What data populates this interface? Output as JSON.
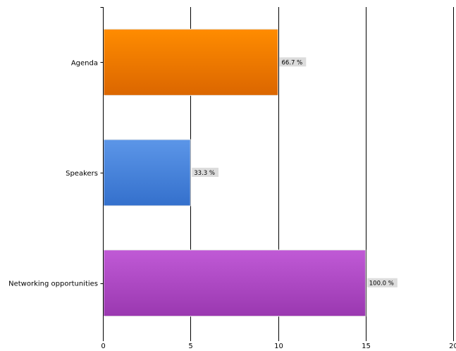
{
  "chart_data": {
    "type": "bar",
    "orientation": "horizontal",
    "categories": [
      "Agenda",
      "Speakers",
      "Networking opportunities"
    ],
    "values": [
      10,
      5,
      15
    ],
    "data_labels": [
      "66.7 %",
      "33.3 %",
      "100.0 %"
    ],
    "bar_colors": [
      [
        "#ff8c00",
        "#db6600"
      ],
      [
        "#5c96e8",
        "#3470cc"
      ],
      [
        "#c05ad6",
        "#9a38b0"
      ]
    ],
    "xlim": [
      0,
      20
    ],
    "xticks": [
      0,
      5,
      10,
      15,
      20
    ],
    "xtick_labels": [
      "0",
      "5",
      "10",
      "15",
      "20"
    ],
    "grid": "vertical",
    "legend": "none"
  }
}
